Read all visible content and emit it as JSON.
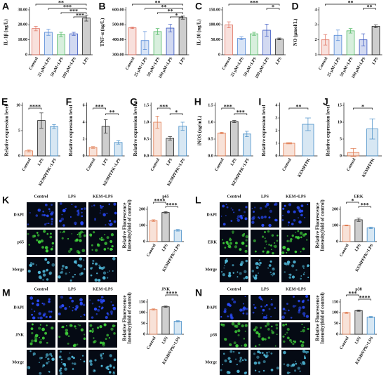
{
  "chart_data": [
    {
      "type": "bar",
      "panel": "A",
      "y_label": "IL-1β (ng/L)",
      "categories": [
        "Control",
        "25 μM+LPS",
        "50 μM+LPS",
        "100 μM+LPS",
        "LPS"
      ],
      "values": [
        17.5,
        15,
        13.5,
        14,
        24.5
      ],
      "errors": [
        1.5,
        2,
        1.5,
        1,
        2
      ],
      "colors": [
        "#e0705e",
        "#4f86d6",
        "#4fb862",
        "#3452c0",
        "#222222"
      ],
      "ylim": [
        0,
        30
      ],
      "yticks": [
        0,
        {
          "value": 10,
          "label": "10.00"
        },
        {
          "value": 20,
          "label": "20.00"
        },
        {
          "value": 30,
          "label": "30.00"
        }
      ],
      "annotations": [
        "**",
        "***",
        "***",
        "***"
      ]
    },
    {
      "type": "bar",
      "panel": "B",
      "y_label": "TNF-α (ng/L)",
      "categories": [
        "Control",
        "25 μM+LPS",
        "50 μM+LPS",
        "100 μM+LPS",
        "LPS"
      ],
      "values": [
        480,
        395,
        455,
        478,
        548
      ],
      "errors": [
        5,
        60,
        20,
        25,
        10
      ],
      "colors": [
        "#e0705e",
        "#4f86d6",
        "#4fb862",
        "#3452c0",
        "#222222"
      ],
      "ylim": [
        300,
        600
      ],
      "yticks": [
        {
          "value": 300,
          "label": "300.00"
        },
        {
          "value": 400,
          "label": "400.00"
        },
        {
          "value": 500,
          "label": "500.00"
        },
        {
          "value": 600,
          "label": "600.00"
        }
      ],
      "annotations": [
        "**",
        "**",
        "**",
        "*"
      ]
    },
    {
      "type": "bar",
      "panel": "C",
      "y_label": "IL-10 (ng/L)",
      "categories": [
        "Control",
        "25 μM+LPS",
        "50 μM+LPS",
        "100 μM+LPS",
        "LPS"
      ],
      "values": [
        100,
        55,
        70,
        82,
        53
      ],
      "errors": [
        10,
        5,
        5,
        20,
        3
      ],
      "colors": [
        "#e0705e",
        "#4f86d6",
        "#4fb862",
        "#3452c0",
        "#222222"
      ],
      "ylim": [
        0,
        150
      ],
      "yticks": [
        0,
        {
          "value": 50,
          "label": "50.00"
        },
        {
          "value": 100,
          "label": "100.00"
        },
        {
          "value": 150,
          "label": "150.00"
        }
      ],
      "annotations": [
        "***",
        "*"
      ]
    },
    {
      "type": "bar",
      "panel": "D",
      "y_label": "NO (μmol/L)",
      "categories": [
        "Control",
        "25 μM+LPS",
        "50 μM+LPS",
        "100 μM+LPS",
        "LPS"
      ],
      "values": [
        2.0,
        2.3,
        2.6,
        2.0,
        2.9
      ],
      "errors": [
        0.35,
        0.35,
        0.15,
        0.4,
        0.1
      ],
      "colors": [
        "#e0705e",
        "#4f86d6",
        "#4fb862",
        "#3452c0",
        "#222222"
      ],
      "ylim": [
        1,
        4
      ],
      "yticks": [
        1,
        2,
        3,
        4
      ],
      "annotations": [
        "**",
        "**"
      ]
    },
    {
      "type": "bar",
      "panel": "E",
      "y_label": "Relative expression level",
      "categories": [
        "Control",
        "LPS",
        "KEMPFPK+LPS"
      ],
      "values": [
        1,
        7,
        5.8
      ],
      "errors": [
        0.2,
        1.5,
        0.4
      ],
      "colors": [
        "#e07a4f",
        "#222222",
        "#4a90c8"
      ],
      "ylim": [
        0,
        10
      ],
      "yticks": [
        0,
        5,
        10
      ],
      "annotations": [
        "****"
      ]
    },
    {
      "type": "bar",
      "panel": "F",
      "y_label": "Relative expression level",
      "categories": [
        "Control",
        "LPS",
        "KEMPFPK+LPS"
      ],
      "values": [
        1,
        3.5,
        1.6
      ],
      "errors": [
        0.1,
        0.8,
        0.2
      ],
      "colors": [
        "#e07a4f",
        "#222222",
        "#4a90c8"
      ],
      "ylim": [
        0,
        6
      ],
      "yticks": [
        0,
        2,
        4,
        6
      ],
      "annotations": [
        "***",
        "**"
      ]
    },
    {
      "type": "bar",
      "panel": "G",
      "y_label": "Relative expression level",
      "categories": [
        "Control",
        "LPS",
        "KEMPFPK+LPS"
      ],
      "values": [
        1.0,
        0.52,
        0.88
      ],
      "errors": [
        0.18,
        0.05,
        0.12
      ],
      "colors": [
        "#e07a4f",
        "#222222",
        "#4a90c8"
      ],
      "ylim": [
        0,
        1.5
      ],
      "yticks": [
        {
          "value": 0,
          "label": "0.0"
        },
        0.5,
        {
          "value": 1,
          "label": "1.0"
        },
        1.5
      ],
      "annotations": [
        "***",
        "*"
      ]
    },
    {
      "type": "bar",
      "panel": "H",
      "y_label": "iNOS (ng/mL)",
      "categories": [
        "Control",
        "LPS",
        "KEMPFPK+LPS"
      ],
      "values": [
        0.68,
        1.02,
        0.65
      ],
      "errors": [
        0.02,
        0.03,
        0.08
      ],
      "colors": [
        "#e07a4f",
        "#222222",
        "#4a90c8"
      ],
      "ylim": [
        0,
        1.5
      ],
      "yticks": [
        {
          "value": 0,
          "label": "0.0"
        },
        0.5,
        {
          "value": 1,
          "label": "1.0"
        },
        1.5
      ],
      "annotations": [
        "***",
        "***"
      ]
    },
    {
      "type": "bar",
      "panel": "I",
      "y_label": "Relative expression level",
      "categories": [
        "Control",
        "KEMPFPK"
      ],
      "values": [
        1,
        2.5
      ],
      "errors": [
        0.05,
        0.5
      ],
      "colors": [
        "#e07a4f",
        "#4a90c8"
      ],
      "ylim": [
        0,
        4
      ],
      "yticks": [
        0,
        1,
        2,
        3,
        4
      ],
      "annotations": [
        "**"
      ]
    },
    {
      "type": "bar",
      "panel": "J",
      "y_label": "Relative expression level",
      "categories": [
        "Control",
        "KEMPFPK"
      ],
      "values": [
        1,
        8
      ],
      "errors": [
        1.2,
        3
      ],
      "colors": [
        "#e07a4f",
        "#4a90c8"
      ],
      "ylim": [
        0,
        15
      ],
      "yticks": [
        0,
        5,
        10,
        15
      ],
      "annotations": [
        "*"
      ]
    },
    {
      "type": "bar",
      "panel": "K",
      "title": "p65",
      "columns": [
        "Control",
        "LPS",
        "KEM+LPS"
      ],
      "rows": [
        "DAPI",
        "p65",
        "Merge"
      ],
      "y_label": [
        "Relative Fluorescence",
        "Intensity(fold of control)"
      ],
      "categories": [
        "Control",
        "LPS",
        "KEMPFPK+LPS"
      ],
      "values": [
        130,
        180,
        70
      ],
      "errors": [
        5,
        5,
        5
      ],
      "colors": [
        "#e07a4f",
        "#222222",
        "#4a90c8"
      ],
      "ylim": [
        0,
        200
      ],
      "yticks": [
        0,
        100,
        200
      ],
      "annotations": [
        "****",
        "****"
      ]
    },
    {
      "type": "bar",
      "panel": "L",
      "title": "ERK",
      "columns": [
        "Control",
        "LPS",
        "KEM+LPS"
      ],
      "rows": [
        "DAPI",
        "ERK",
        "Merge"
      ],
      "y_label": [
        "Relative Fluorescence",
        "Intensity(fold of control)"
      ],
      "categories": [
        "Control",
        "LPS",
        "KEMPFPK+LPS"
      ],
      "values": [
        100,
        135,
        85
      ],
      "errors": [
        3,
        10,
        5
      ],
      "colors": [
        "#e07a4f",
        "#222222",
        "#4a90c8"
      ],
      "ylim": [
        0,
        200
      ],
      "yticks": [
        0,
        100,
        200
      ],
      "annotations": [
        "*",
        "***"
      ]
    },
    {
      "type": "bar",
      "panel": "M",
      "title": "JNK",
      "columns": [
        "Control",
        "LPS",
        "KEM+LPS"
      ],
      "rows": [
        "DAPI",
        "JNK",
        "Merge"
      ],
      "y_label": [
        "Relative Fluorescence",
        "Intensity(fold of control)"
      ],
      "categories": [
        "Control",
        "LPS",
        "KEMPFPK+LPS"
      ],
      "values": [
        115,
        128,
        60
      ],
      "errors": [
        3,
        3,
        3
      ],
      "colors": [
        "#e07a4f",
        "#222222",
        "#4a90c8"
      ],
      "ylim": [
        0,
        150
      ],
      "yticks": [
        0,
        50,
        100,
        150
      ],
      "annotations": [
        "****"
      ]
    },
    {
      "type": "bar",
      "panel": "N",
      "title": "p38",
      "columns": [
        "Control",
        "LPS",
        "KEM+LPS"
      ],
      "rows": [
        "DAPI",
        "p38",
        "Merge"
      ],
      "y_label": [
        "Relative Fluorescence",
        "Intensity(fold of control)"
      ],
      "categories": [
        "Control",
        "LPS",
        "KEMPFPK+LPS"
      ],
      "values": [
        100,
        110,
        80
      ],
      "errors": [
        3,
        3,
        3
      ],
      "colors": [
        "#e07a4f",
        "#222222",
        "#4a90c8"
      ],
      "ylim": [
        0,
        150
      ],
      "yticks": [
        0,
        50,
        100,
        150
      ],
      "annotations": [
        "***",
        "****"
      ]
    }
  ]
}
